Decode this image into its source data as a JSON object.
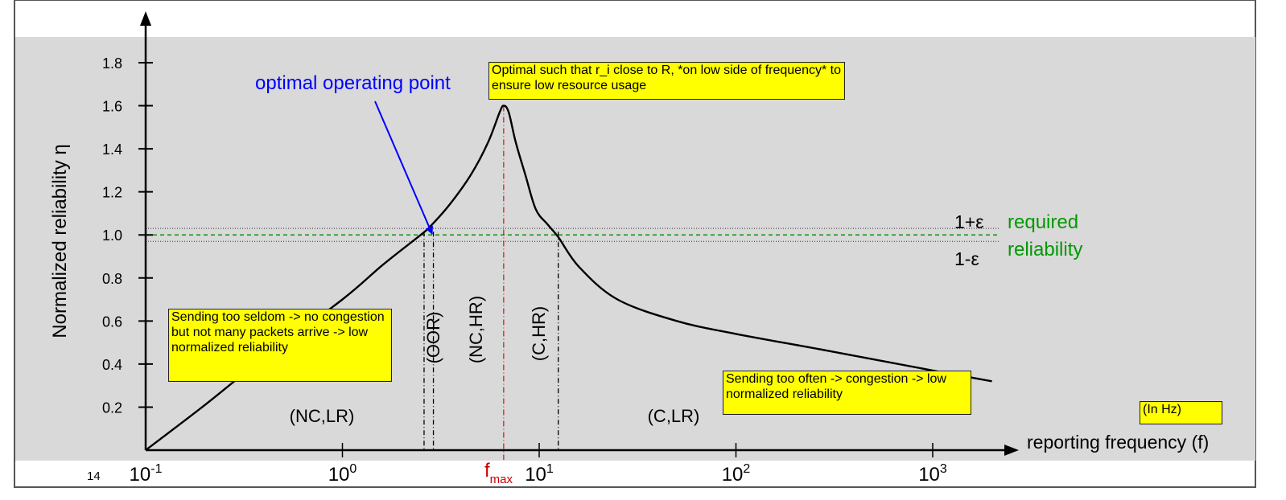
{
  "page_number": "14",
  "labels": {
    "optimal_point": "optimal operating point",
    "ylabel": "Normalized reliability η",
    "xlabel": "reporting frequency (f)",
    "eps_plus": "1+ε",
    "eps_minus": "1-ε",
    "required_line1": "required",
    "required_line2": "reliability",
    "fmax_main": "f",
    "fmax_sub": "max",
    "unit_note": "(In Hz)"
  },
  "notes": {
    "optimal": "Optimal such that r_i close to R, *on low side of frequency* to ensure low resource usage",
    "seldom": "Sending too seldom -> no congestion but not many packets arrive -> low normalized reliability",
    "often": "Sending too often -> congestion -> low normalized reliability"
  },
  "regions": {
    "nc_lr": "(NC,LR)",
    "oor": "(OOR)",
    "nc_hr": "(NC,HR)",
    "c_hr": "(C,HR)",
    "c_lr": "(C,LR)"
  },
  "colors": {
    "panel_bg": "#d9d9d9",
    "note_bg": "#ffff00",
    "curve": "#000000",
    "optimal_label": "#0000ff",
    "required": "#009900",
    "fmax": "#cc0000"
  },
  "chart_data": {
    "type": "line",
    "xscale": "log",
    "xlabel": "reporting frequency (f)",
    "ylabel": "Normalized reliability η",
    "xlim": [
      0.1,
      2000
    ],
    "ylim": [
      0,
      1.9
    ],
    "xticks": [
      {
        "value": 0.1,
        "base": "10",
        "exp": "-1"
      },
      {
        "value": 1,
        "base": "10",
        "exp": "0"
      },
      {
        "value": 10,
        "base": "10",
        "exp": "1"
      },
      {
        "value": 100,
        "base": "10",
        "exp": "2"
      },
      {
        "value": 1000,
        "base": "10",
        "exp": "3"
      }
    ],
    "yticks": [
      0.2,
      0.4,
      0.6,
      0.8,
      1.0,
      1.2,
      1.4,
      1.6,
      1.8
    ],
    "ytick_labels": [
      "0.2",
      "0.4",
      "0.6",
      "0.8",
      "1.0",
      "1.2",
      "1.4",
      "1.6",
      "1.8"
    ],
    "series": [
      {
        "x": [
          0.1,
          0.2,
          0.4,
          1.0,
          1.6,
          2.5,
          2.8,
          3.5,
          4.5,
          5.5,
          6.3,
          6.6,
          7.0,
          7.6,
          8.5,
          9.6,
          11.0,
          12.5,
          16,
          25,
          50,
          100,
          300,
          1000,
          2000
        ],
        "y": [
          0.0,
          0.21,
          0.43,
          0.7,
          0.86,
          1.0,
          1.04,
          1.14,
          1.28,
          1.43,
          1.57,
          1.6,
          1.57,
          1.43,
          1.28,
          1.12,
          1.05,
          0.99,
          0.85,
          0.7,
          0.6,
          0.54,
          0.46,
          0.37,
          0.32
        ]
      }
    ],
    "reference_lines": {
      "required": 1.0,
      "upper": 1.03,
      "lower": 0.97
    },
    "optimal_x": 2.8,
    "fmax_x": 6.6,
    "crossing_x": [
      2.6,
      2.9,
      12.5
    ]
  }
}
